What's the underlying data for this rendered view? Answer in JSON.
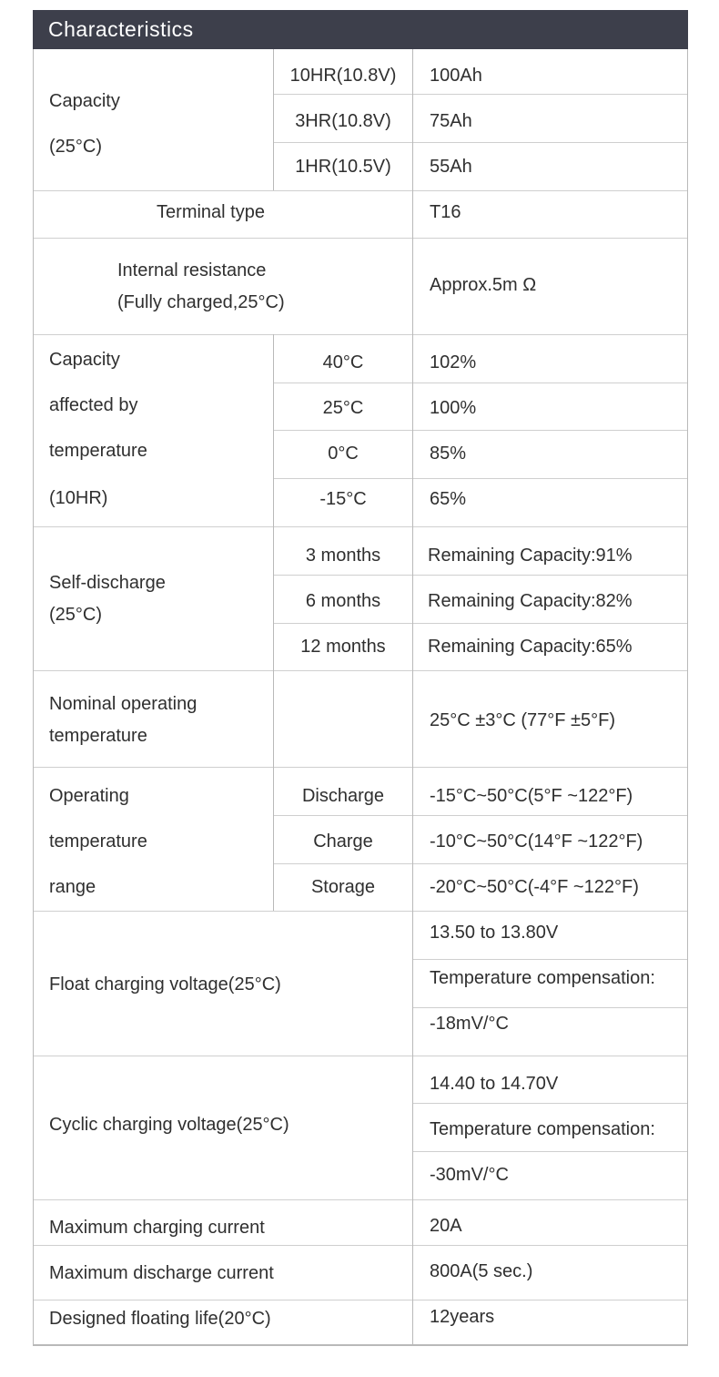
{
  "title": "Characteristics",
  "capacity": {
    "label_line1": "Capacity",
    "label_line2": "(25°C)",
    "rows": [
      {
        "rate": "10HR(10.8V)",
        "value": "100Ah"
      },
      {
        "rate": "3HR(10.8V)",
        "value": "75Ah"
      },
      {
        "rate": "1HR(10.5V)",
        "value": "55Ah"
      }
    ]
  },
  "terminal": {
    "label": "Terminal type",
    "value": "T16"
  },
  "internal_resistance": {
    "label_line1": "Internal resistance",
    "label_line2": "(Fully charged,25°C)",
    "value": "Approx.5m Ω"
  },
  "temperature_capacity": {
    "label_lines": [
      "Capacity",
      "affected by",
      "temperature",
      "(10HR)"
    ],
    "rows": [
      {
        "temp": "40°C",
        "value": "102%"
      },
      {
        "temp": "25°C",
        "value": "100%"
      },
      {
        "temp": "0°C",
        "value": "85%"
      },
      {
        "temp": "-15°C",
        "value": "65%"
      }
    ]
  },
  "self_discharge": {
    "label_line1": "Self-discharge",
    "label_line2": "(25°C)",
    "rows": [
      {
        "period": "3 months",
        "value": "Remaining Capacity:91%"
      },
      {
        "period": "6 months",
        "value": "Remaining Capacity:82%"
      },
      {
        "period": "12 months",
        "value": "Remaining Capacity:65%"
      }
    ]
  },
  "nominal_temp": {
    "label_line1": "Nominal operating",
    "label_line2": "temperature",
    "value": "25°C ±3°C (77°F ±5°F)"
  },
  "operating_range": {
    "label_lines": [
      "Operating",
      "temperature",
      "range"
    ],
    "rows": [
      {
        "mode": "Discharge",
        "value": "-15°C~50°C(5°F ~122°F)"
      },
      {
        "mode": "Charge",
        "value": "-10°C~50°C(14°F ~122°F)"
      },
      {
        "mode": "Storage",
        "value": "-20°C~50°C(-4°F ~122°F)"
      }
    ]
  },
  "float_voltage": {
    "label": "Float charging voltage(25°C)",
    "lines": [
      "13.50 to 13.80V",
      "Temperature compensation:",
      "-18mV/°C"
    ]
  },
  "cyclic_voltage": {
    "label": "Cyclic charging voltage(25°C)",
    "lines": [
      "14.40 to 14.70V",
      "Temperature compensation:",
      "-30mV/°C"
    ]
  },
  "max_charge": {
    "label": "Maximum charging current",
    "value": "20A"
  },
  "max_discharge": {
    "label": "Maximum discharge current",
    "value": "800A(5 sec.)"
  },
  "floating_life": {
    "label": "Designed floating life(20°C)",
    "value": "12years"
  }
}
